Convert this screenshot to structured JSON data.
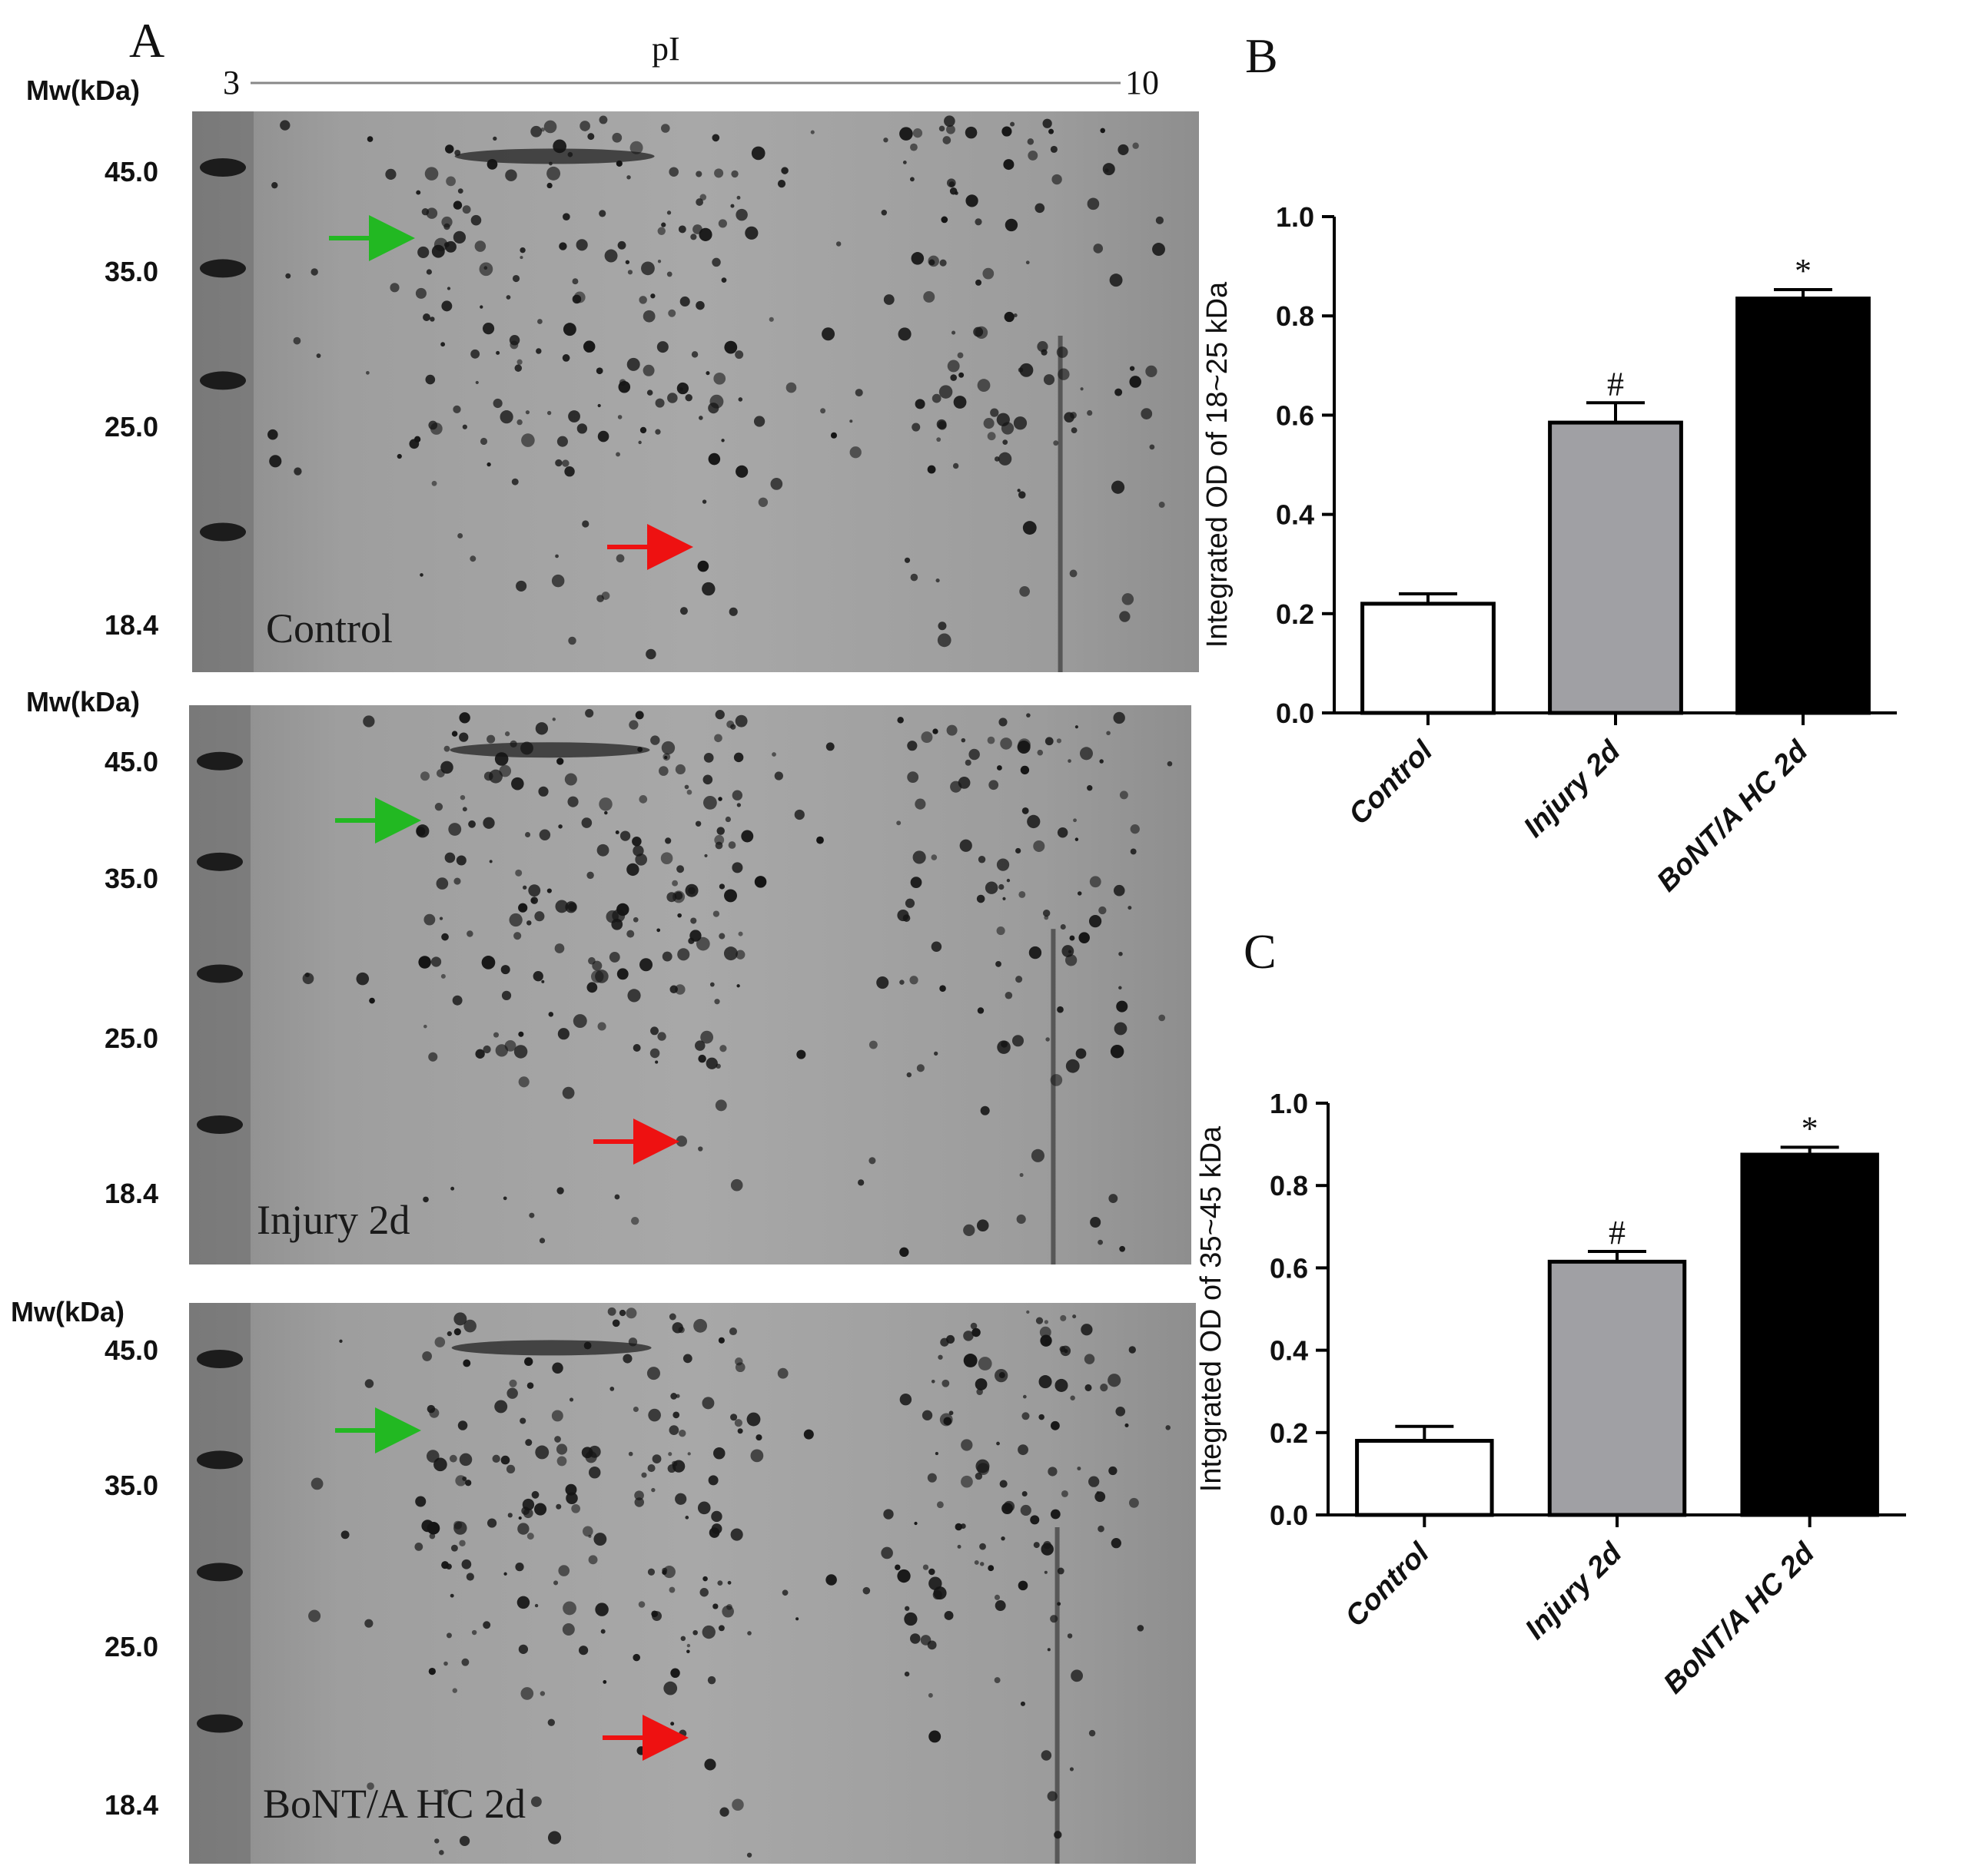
{
  "panels": {
    "A": "A",
    "B": "B",
    "C": "C"
  },
  "gel": {
    "pi_label": "pI",
    "pi_min": "3",
    "pi_max": "10",
    "mw_title": "Mw(kDa)",
    "mw_ticks": [
      "45.0",
      "35.0",
      "25.0",
      "18.4"
    ],
    "gels": [
      {
        "label": "Control"
      },
      {
        "label": "Injury 2d"
      },
      {
        "label": "BoNT/A HC 2d"
      }
    ],
    "colors": {
      "green_arrow": "#22b822",
      "red_arrow": "#ee1111"
    }
  },
  "chart_data": [
    {
      "id": "B",
      "type": "bar",
      "categories": [
        "Control",
        "Injury 2d",
        "BoNT/A HC 2d"
      ],
      "values": [
        0.22,
        0.585,
        0.835
      ],
      "errors": [
        0.02,
        0.04,
        0.018
      ],
      "significance": [
        "",
        "#",
        "*"
      ],
      "colors": [
        "#ffffff",
        "#a0a0a4",
        "#000000"
      ],
      "ylabel": "Integrated OD of 18~25 kDa",
      "ylim": [
        0,
        1.0
      ],
      "yticks": [
        "0.0",
        "0.2",
        "0.4",
        "0.6",
        "0.8",
        "1.0"
      ]
    },
    {
      "id": "C",
      "type": "bar",
      "categories": [
        "Control",
        "Injury 2d",
        "BoNT/A HC 2d"
      ],
      "values": [
        0.18,
        0.615,
        0.875
      ],
      "errors": [
        0.035,
        0.025,
        0.018
      ],
      "significance": [
        "",
        "#",
        "*"
      ],
      "colors": [
        "#ffffff",
        "#a0a0a4",
        "#000000"
      ],
      "ylabel": "Integrated OD of 35~45 kDa",
      "ylim": [
        0,
        1.0
      ],
      "yticks": [
        "0.0",
        "0.2",
        "0.4",
        "0.6",
        "0.8",
        "1.0"
      ]
    }
  ]
}
